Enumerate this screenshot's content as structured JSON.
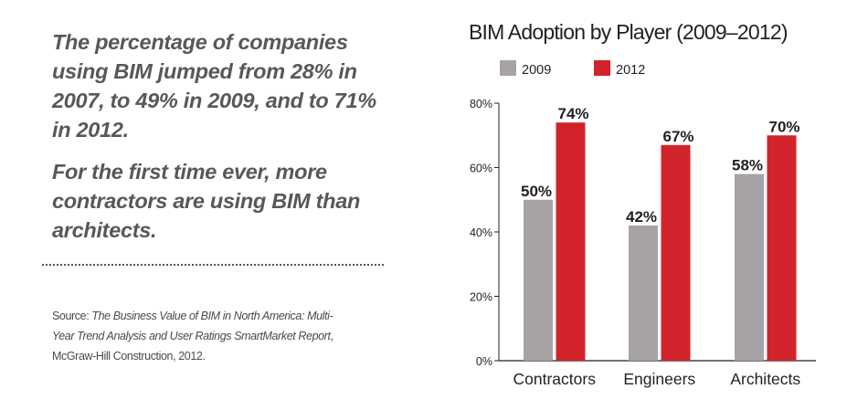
{
  "text": {
    "headline_1": "The percentage of companies using BIM jumped from 28% in 2007, to 49% in 2009, and to 71% in 2012.",
    "headline_2": "For the first time ever, more contractors are using BIM than architects.",
    "source_prefix": "Source: ",
    "source_title": "The Business Value of BIM in North America: Multi-Year Trend Analysis and User Ratings SmartMarket Report",
    "source_suffix": ", McGraw-Hill Construction, 2012."
  },
  "chart_data": {
    "type": "bar",
    "title": "BIM Adoption by Player (2009–2012)",
    "xlabel": "",
    "ylabel": "",
    "categories": [
      "Contractors",
      "Engineers",
      "Architects"
    ],
    "series": [
      {
        "name": "2009",
        "values": [
          50,
          42,
          58
        ],
        "labels": [
          "50%",
          "42%",
          "58%"
        ],
        "color": "#a7a2a5"
      },
      {
        "name": "2012",
        "values": [
          74,
          67,
          70
        ],
        "labels": [
          "74%",
          "67%",
          "70%"
        ],
        "color": "#d2232a"
      }
    ],
    "ylim": [
      0,
      80
    ],
    "yticks": [
      0,
      20,
      40,
      60,
      80
    ],
    "ytick_labels": [
      "0%",
      "20%",
      "40%",
      "60%",
      "80%"
    ],
    "grid": false,
    "legend_position": "top-left"
  }
}
